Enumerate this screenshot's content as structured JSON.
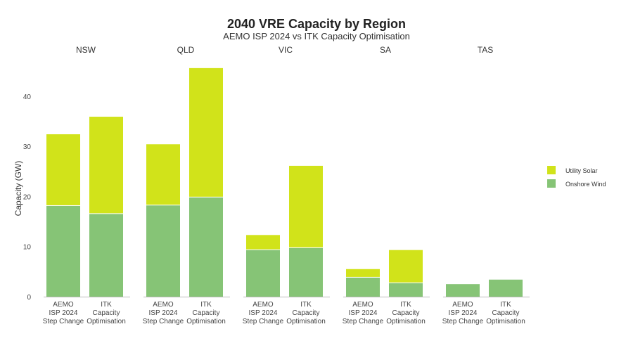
{
  "chart_data": {
    "type": "bar",
    "stacked": true,
    "title": "2040 VRE Capacity by Region",
    "subtitle": "AEMO ISP 2024 vs ITK Capacity Optimisation",
    "ylabel": "Capacity (GW)",
    "ylim": [
      0,
      47
    ],
    "yticks": [
      0,
      10,
      20,
      30,
      40
    ],
    "grid": false,
    "legend_position": "right",
    "categories": [
      [
        "AEMO",
        "ISP 2024",
        "Step Change"
      ],
      [
        "ITK",
        "Capacity",
        "Optimisation"
      ]
    ],
    "panels": [
      {
        "region": "NSW",
        "wind": [
          18.1,
          16.5
        ],
        "solar": [
          14.3,
          19.4
        ]
      },
      {
        "region": "QLD",
        "wind": [
          18.2,
          19.8
        ],
        "solar": [
          12.2,
          25.8
        ]
      },
      {
        "region": "VIC",
        "wind": [
          9.3,
          9.7
        ],
        "solar": [
          3.0,
          16.4
        ]
      },
      {
        "region": "SA",
        "wind": [
          3.8,
          2.7
        ],
        "solar": [
          1.7,
          6.6
        ]
      },
      {
        "region": "TAS",
        "wind": [
          2.5,
          3.4
        ],
        "solar": [
          0,
          0
        ]
      }
    ],
    "series": [
      {
        "name": "Utility Solar",
        "color": "#d1e31a"
      },
      {
        "name": "Onshore Wind",
        "color": "#86c476"
      }
    ]
  }
}
